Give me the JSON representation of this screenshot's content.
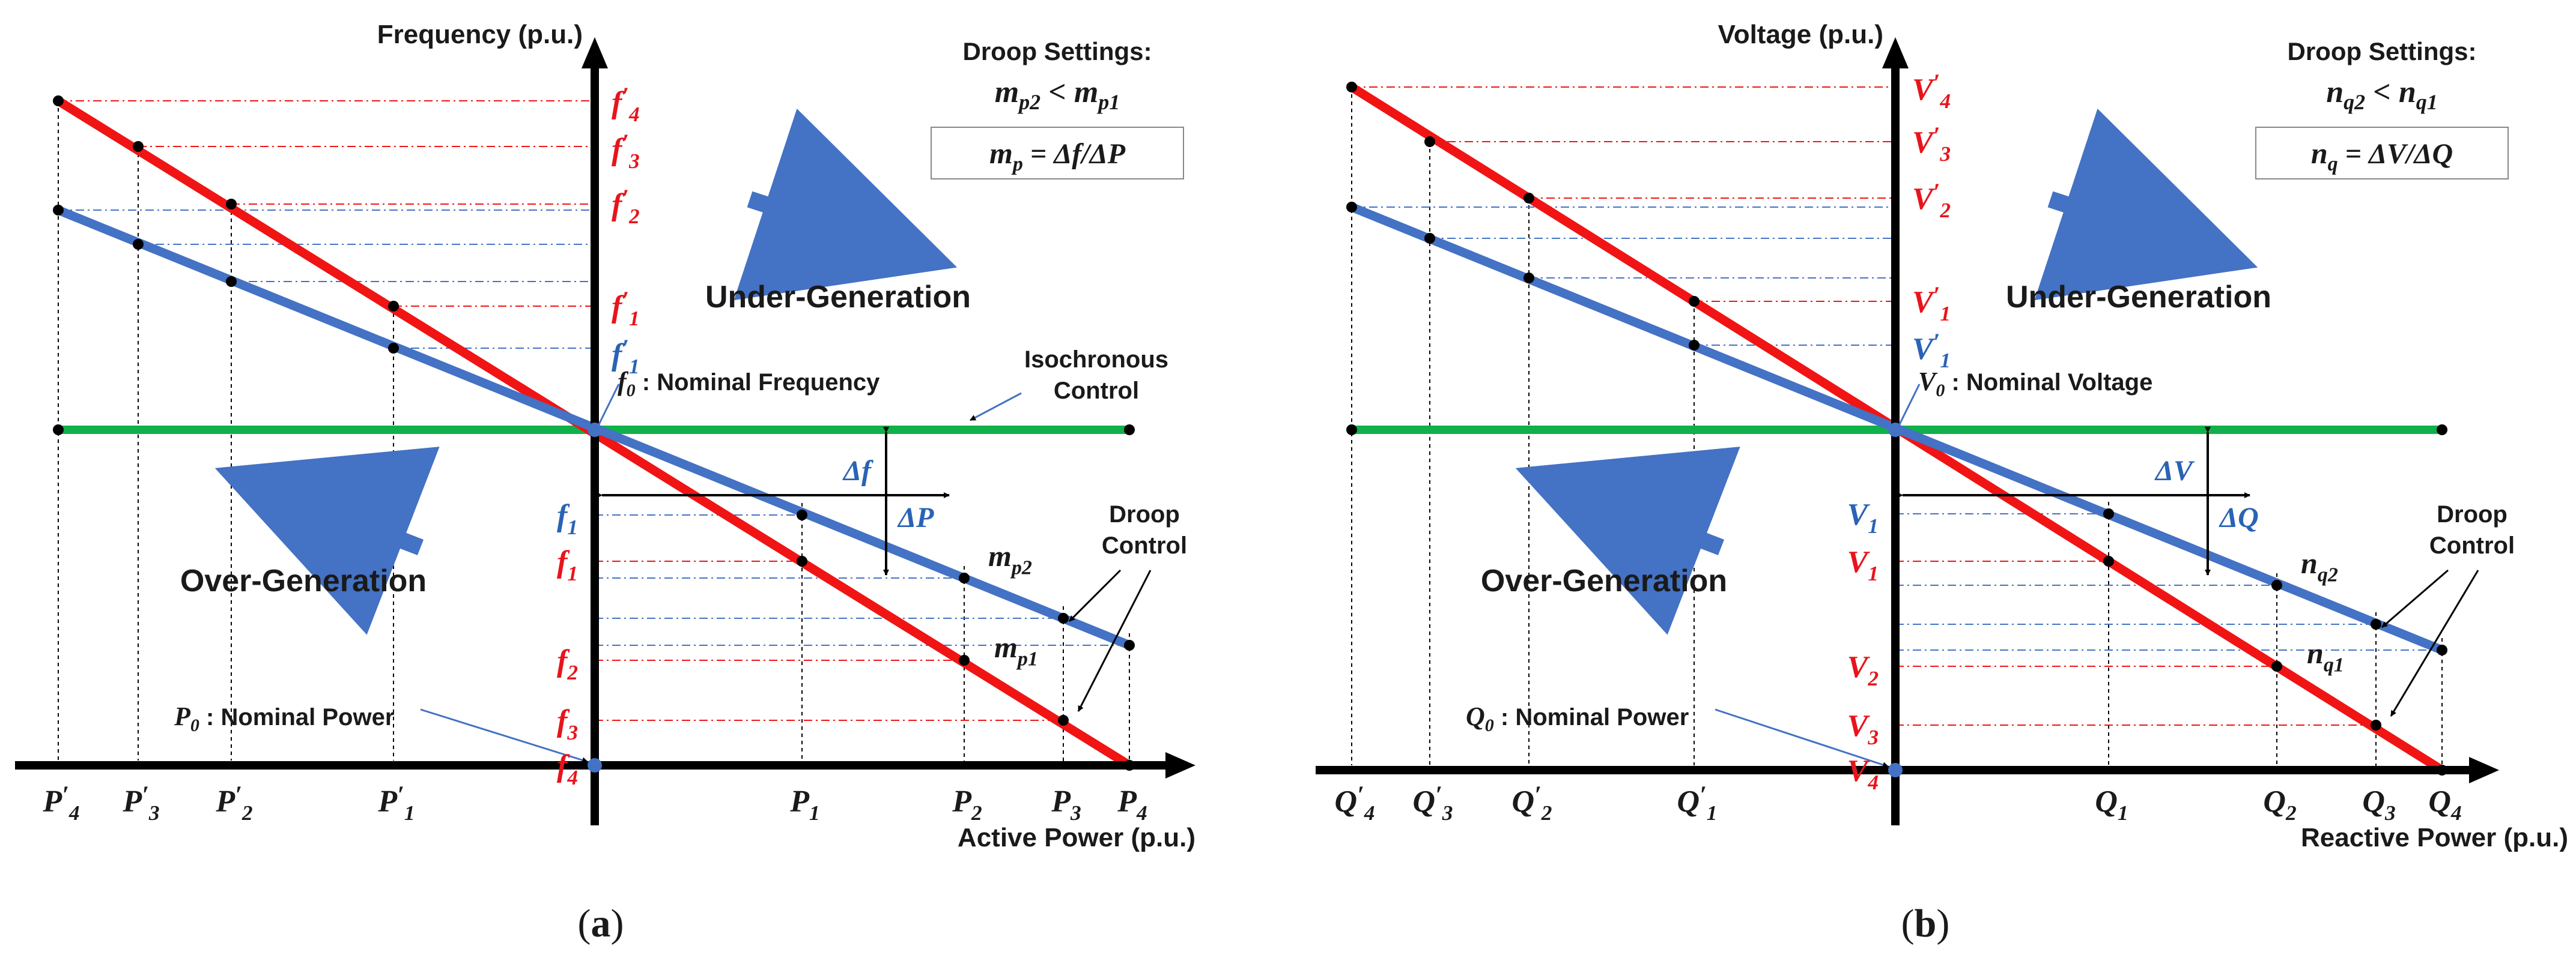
{
  "colors": {
    "red_line": "#f01414",
    "blue_line": "#4472c4",
    "green_line": "#10b14a",
    "axis": "#000000",
    "red_text": "#e8141b",
    "blue_text": "#2a63b5",
    "arrow_blue": "#4472c4"
  },
  "panels": [
    {
      "id": "a",
      "caption": "(a)",
      "y_axis_title": "Frequency (p.u.)",
      "x_axis_title": "Active Power (p.u.)",
      "droop_title": "Droop Settings:",
      "ineq": {
        "l": "m",
        "ls": "p2",
        "op": " < ",
        "r": "m",
        "rs": "p1"
      },
      "formula": {
        "l": "m",
        "ls": "p",
        "rhs": " = Δf/ΔP"
      },
      "under_gen": "Under-Generation",
      "over_gen": "Over-Generation",
      "nominal_y": {
        "sym": "f",
        "sub": "0",
        "text": " :  Nominal Frequency"
      },
      "nominal_x": {
        "sym": "P",
        "sub": "0",
        "text": " :  Nominal Power"
      },
      "iso_label": [
        "Isochronous",
        "Control"
      ],
      "droop_label": [
        "Droop",
        "Control"
      ],
      "delta_y": {
        "sym": "Δf"
      },
      "delta_x": {
        "sym": "ΔP"
      },
      "slope_upper": {
        "sym": "m",
        "sub": "p2"
      },
      "slope_lower": {
        "sym": "m",
        "sub": "p1"
      },
      "y_ticks_upper_red": [
        {
          "sym": "f",
          "sub": "4",
          "prime": "′"
        },
        {
          "sym": "f",
          "sub": "3",
          "prime": "′"
        },
        {
          "sym": "f",
          "sub": "2",
          "prime": "′"
        },
        {
          "sym": "f",
          "sub": "1",
          "prime": "′"
        }
      ],
      "y_tick_upper_blue": {
        "sym": "f",
        "sub": "1",
        "prime": "′"
      },
      "y_tick_lower_blue": {
        "sym": "f",
        "sub": "1",
        "prime": ""
      },
      "y_ticks_lower_red": [
        {
          "sym": "f",
          "sub": "1",
          "prime": ""
        },
        {
          "sym": "f",
          "sub": "2",
          "prime": ""
        },
        {
          "sym": "f",
          "sub": "3",
          "prime": ""
        },
        {
          "sym": "f",
          "sub": "4",
          "prime": ""
        }
      ],
      "x_ticks_left": [
        {
          "sym": "P",
          "sub": "4",
          "prime": "′"
        },
        {
          "sym": "P",
          "sub": "3",
          "prime": "′"
        },
        {
          "sym": "P",
          "sub": "2",
          "prime": "′"
        },
        {
          "sym": "P",
          "sub": "1",
          "prime": "′"
        }
      ],
      "x_ticks_right": [
        {
          "sym": "P",
          "sub": "1",
          "prime": ""
        },
        {
          "sym": "P",
          "sub": "2",
          "prime": ""
        },
        {
          "sym": "P",
          "sub": "3",
          "prime": ""
        },
        {
          "sym": "P",
          "sub": "4",
          "prime": ""
        }
      ]
    },
    {
      "id": "b",
      "caption": "(b)",
      "y_axis_title": "Voltage (p.u.)",
      "x_axis_title": "Reactive Power (p.u.)",
      "droop_title": "Droop Settings:",
      "ineq": {
        "l": "n",
        "ls": "q2",
        "op": " < ",
        "r": "n",
        "rs": "q1"
      },
      "formula": {
        "l": "n",
        "ls": "q",
        "rhs": " = ΔV/ΔQ"
      },
      "under_gen": "Under-Generation",
      "over_gen": "Over-Generation",
      "nominal_y": {
        "sym": "V",
        "sub": "0",
        "text": " :  Nominal Voltage"
      },
      "nominal_x": {
        "sym": "Q",
        "sub": "0",
        "text": " :  Nominal Power"
      },
      "iso_label": [],
      "droop_label": [
        "Droop",
        "Control"
      ],
      "delta_y": {
        "sym": "ΔV"
      },
      "delta_x": {
        "sym": "ΔQ"
      },
      "slope_upper": {
        "sym": "n",
        "sub": "q2"
      },
      "slope_lower": {
        "sym": "n",
        "sub": "q1"
      },
      "y_ticks_upper_red": [
        {
          "sym": "V",
          "sub": "4",
          "prime": "′"
        },
        {
          "sym": "V",
          "sub": "3",
          "prime": "′"
        },
        {
          "sym": "V",
          "sub": "2",
          "prime": "′"
        },
        {
          "sym": "V",
          "sub": "1",
          "prime": "′"
        }
      ],
      "y_tick_upper_blue": {
        "sym": "V",
        "sub": "1",
        "prime": "′"
      },
      "y_tick_lower_blue": {
        "sym": "V",
        "sub": "1",
        "prime": ""
      },
      "y_ticks_lower_red": [
        {
          "sym": "V",
          "sub": "1",
          "prime": ""
        },
        {
          "sym": "V",
          "sub": "2",
          "prime": ""
        },
        {
          "sym": "V",
          "sub": "3",
          "prime": ""
        },
        {
          "sym": "V",
          "sub": "4",
          "prime": ""
        }
      ],
      "x_ticks_left": [
        {
          "sym": "Q",
          "sub": "4",
          "prime": "′"
        },
        {
          "sym": "Q",
          "sub": "3",
          "prime": "′"
        },
        {
          "sym": "Q",
          "sub": "2",
          "prime": "′"
        },
        {
          "sym": "Q",
          "sub": "1",
          "prime": "′"
        }
      ],
      "x_ticks_right": [
        {
          "sym": "Q",
          "sub": "1",
          "prime": ""
        },
        {
          "sym": "Q",
          "sub": "2",
          "prime": ""
        },
        {
          "sym": "Q",
          "sub": "3",
          "prime": ""
        },
        {
          "sym": "Q",
          "sub": "4",
          "prime": ""
        }
      ]
    }
  ]
}
